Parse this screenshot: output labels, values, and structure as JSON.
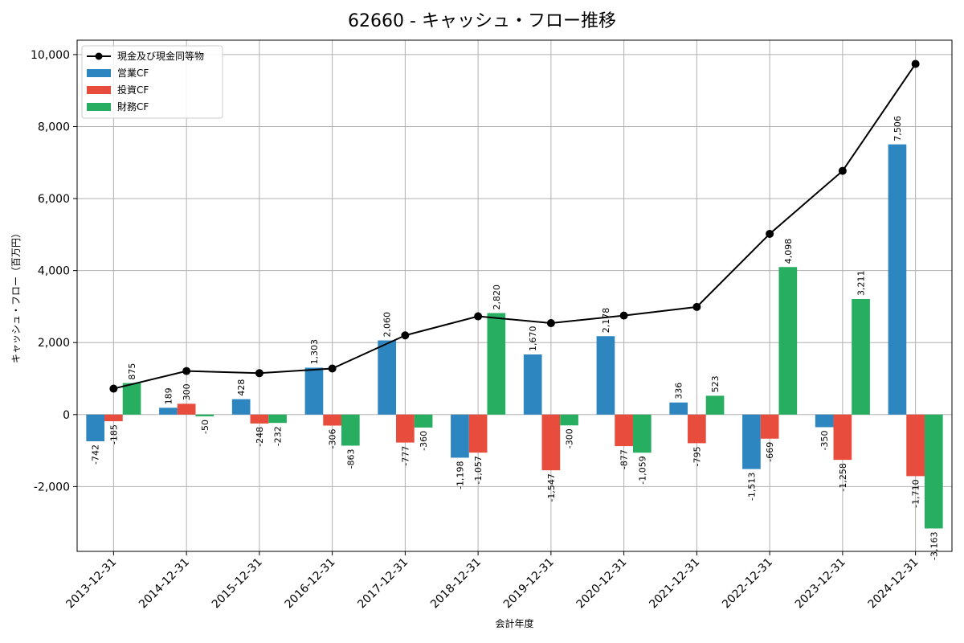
{
  "chart_data": {
    "type": "bar",
    "title": "62660 - キャッシュ・フロー推移",
    "xlabel": "会計年度",
    "ylabel": "キャッシュ・フロー（百万円）",
    "categories": [
      "2013-12-31",
      "2014-12-31",
      "2015-12-31",
      "2016-12-31",
      "2017-12-31",
      "2018-12-31",
      "2019-12-31",
      "2020-12-31",
      "2021-12-31",
      "2022-12-31",
      "2023-12-31",
      "2024-12-31"
    ],
    "series": [
      {
        "name": "営業CF",
        "kind": "bar",
        "color": "#2e86c1",
        "values": [
          -742,
          189,
          428,
          1303,
          2060,
          -1198,
          1670,
          2178,
          336,
          -1513,
          -350,
          7506
        ]
      },
      {
        "name": "投資CF",
        "kind": "bar",
        "color": "#e74c3c",
        "values": [
          -185,
          300,
          -248,
          -306,
          -777,
          -1057,
          -1547,
          -877,
          -795,
          -669,
          -1258,
          -1710
        ]
      },
      {
        "name": "財務CF",
        "kind": "bar",
        "color": "#27ae60",
        "values": [
          875,
          -50,
          -232,
          -863,
          -360,
          2820,
          -300,
          -1059,
          523,
          4098,
          3211,
          -3163
        ]
      },
      {
        "name": "現金及び現金同等物",
        "kind": "line",
        "color": "#000000",
        "values": [
          720,
          1210,
          1150,
          1280,
          2200,
          2730,
          2540,
          2750,
          2990,
          5020,
          6770,
          9740
        ]
      }
    ],
    "ylim": [
      -3800,
      10400
    ],
    "yticks": [
      -2000,
      0,
      2000,
      4000,
      6000,
      8000,
      10000
    ],
    "ytick_labels": [
      "-2,000",
      "0",
      "2,000",
      "4,000",
      "6,000",
      "8,000",
      "10,000"
    ],
    "grid": true,
    "legend_position": "top-left"
  }
}
